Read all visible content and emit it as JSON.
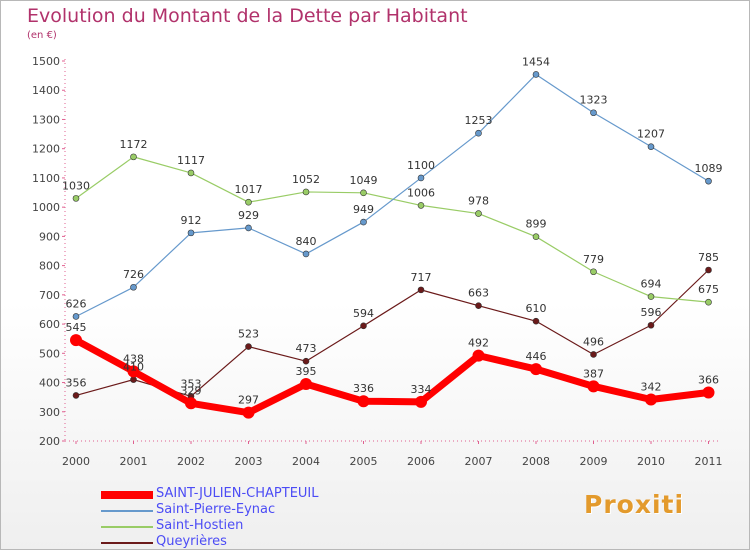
{
  "header": {
    "title": "Evolution du Montant de la Dette par Habitant",
    "subtitle": "(en €)"
  },
  "logo": {
    "text": "Proxiti"
  },
  "chart_data": {
    "type": "line",
    "categories": [
      "2000",
      "2001",
      "2002",
      "2003",
      "2004",
      "2005",
      "2006",
      "2007",
      "2008",
      "2009",
      "2010",
      "2011"
    ],
    "ylim": [
      200,
      1500
    ],
    "yticks": [
      200,
      300,
      400,
      500,
      600,
      700,
      800,
      900,
      1000,
      1100,
      1200,
      1300,
      1400,
      1500
    ],
    "grid": false,
    "legend_position": "bottom-left",
    "series": [
      {
        "name": "SAINT-JULIEN-CHAPTEUIL",
        "color": "#ff0000",
        "values": [
          545,
          438,
          329,
          297,
          395,
          336,
          334,
          492,
          446,
          387,
          342,
          366
        ]
      },
      {
        "name": "Saint-Pierre-Eynac",
        "color": "#6699cc",
        "values": [
          626,
          726,
          912,
          929,
          840,
          949,
          1100,
          1253,
          1454,
          1323,
          1207,
          1089
        ]
      },
      {
        "name": "Saint-Hostien",
        "color": "#99cc66",
        "values": [
          1030,
          1172,
          1117,
          1017,
          1052,
          1049,
          1006,
          978,
          899,
          779,
          694,
          675
        ]
      },
      {
        "name": "Queyrières",
        "color": "#6b1a1a",
        "values": [
          356,
          410,
          353,
          523,
          473,
          594,
          717,
          663,
          610,
          496,
          596,
          785
        ]
      }
    ]
  }
}
